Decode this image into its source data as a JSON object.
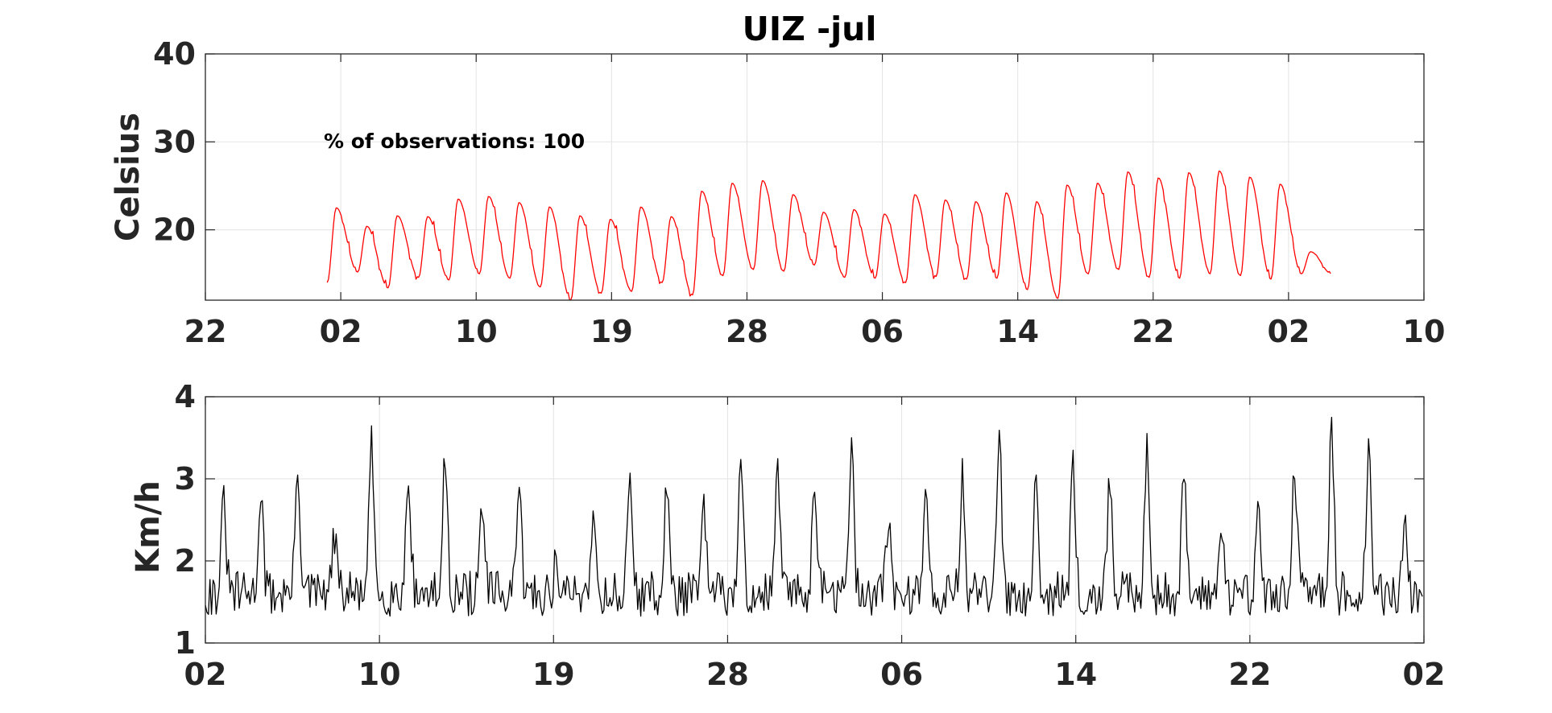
{
  "chart_data": [
    {
      "type": "line",
      "title": "UIZ -jul",
      "ylabel": "Celsius",
      "annotation": "% of observations: 100",
      "ylim": [
        12,
        40
      ],
      "yticks": [
        20,
        30,
        40
      ],
      "xlim": [
        0,
        9
      ],
      "xticks": [
        0,
        1,
        2,
        3,
        4,
        5,
        6,
        7,
        8,
        9
      ],
      "xtick_labels": [
        "22",
        "02",
        "10",
        "19",
        "28",
        "06",
        "14",
        "22",
        "02",
        "10"
      ],
      "grid": true,
      "color": "#ff0000",
      "x_start": 0.9,
      "x_end": 8.32,
      "daily_min": [
        14.0,
        15.2,
        13.4,
        14.6,
        14.3,
        15.0,
        14.5,
        13.5,
        12.0,
        12.8,
        13.0,
        14.0,
        12.6,
        14.8,
        15.5,
        15.3,
        16.0,
        14.6,
        14.5,
        14.0,
        14.7,
        14.4,
        14.5,
        13.2,
        12.2,
        15.0,
        15.5,
        14.6,
        14.5,
        15.0,
        14.8,
        14.4,
        15.0
      ],
      "daily_max": [
        22.5,
        20.4,
        21.6,
        21.5,
        23.5,
        23.8,
        23.1,
        22.6,
        21.6,
        21.2,
        22.6,
        21.5,
        24.4,
        25.3,
        25.6,
        24.0,
        22.0,
        22.3,
        21.8,
        24.0,
        23.4,
        23.2,
        24.2,
        23.2,
        25.1,
        25.3,
        26.6,
        25.9,
        26.5,
        26.7,
        26.0,
        25.2,
        17.5
      ]
    },
    {
      "type": "line",
      "ylabel": "Km/h",
      "ylim": [
        1,
        4
      ],
      "yticks": [
        1,
        2,
        3,
        4
      ],
      "xlim": [
        0,
        7
      ],
      "xticks": [
        0,
        1,
        2,
        3,
        4,
        5,
        6,
        7
      ],
      "xtick_labels": [
        "02",
        "10",
        "19",
        "28",
        "06",
        "14",
        "22",
        "02"
      ],
      "grid": true,
      "color": "#000000",
      "x_start": 0.0,
      "x_end": 7.0,
      "base_level": 1.6,
      "daily_peaks": [
        2.7,
        2.9,
        3.2,
        2.3,
        3.4,
        3.1,
        3.3,
        2.7,
        2.8,
        2.0,
        2.6,
        3.0,
        2.9,
        2.6,
        3.1,
        3.1,
        3.1,
        3.3,
        2.5,
        2.9,
        3.0,
        3.4,
        3.1,
        3.1,
        3.0,
        3.5,
        3.0,
        2.6,
        2.6,
        3.1,
        3.7,
        3.3,
        2.5
      ]
    }
  ]
}
